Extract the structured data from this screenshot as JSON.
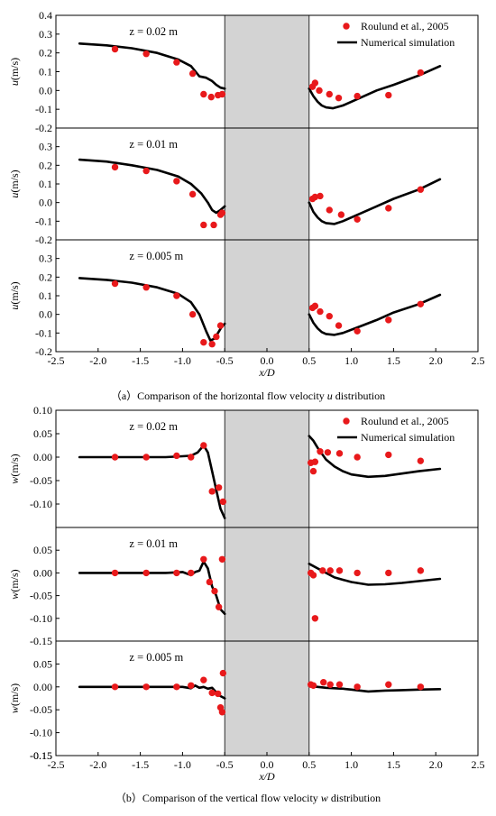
{
  "legend": {
    "experiment": "Roulund et al., 2005",
    "simulation": "Numerical simulation"
  },
  "colors": {
    "marker": "#e8191b",
    "line": "#000000",
    "pier_fill": "#d3d3d3"
  },
  "pier": {
    "x_range": [
      -0.5,
      0.5
    ]
  },
  "x_axis": {
    "label": "x/D",
    "range": [
      -2.5,
      2.5
    ],
    "ticks": [
      "-2.5",
      "-2.0",
      "-1.5",
      "-1.0",
      "-0.5",
      "0.0",
      "0.5",
      "1.0",
      "1.5",
      "2.0",
      "2.5"
    ]
  },
  "figures": [
    {
      "caption": "（a）Comparison of the horizontal flow velocity u distribution",
      "caption_parts": [
        "（a）Comparison of the horizontal flow velocity ",
        "u",
        " distribution"
      ],
      "ylabel_var": "u",
      "ylabel_unit": "(m/s)"
    },
    {
      "caption": "（b）Comparison of the vertical flow velocity w distribution",
      "caption_parts": [
        "（b）Comparison of the vertical flow velocity ",
        "w",
        " distribution"
      ],
      "ylabel_var": "w",
      "ylabel_unit": "(m/s)"
    }
  ],
  "chart_data": [
    {
      "type": "scatter",
      "figure": 0,
      "panel_label": "z = 0.02 m",
      "show_legend": true,
      "ylim": [
        -0.2,
        0.4
      ],
      "yticks": [
        "-0.1",
        "0.0",
        "0.1",
        "0.2",
        "0.3",
        "0.4"
      ],
      "bottom_tick": "-0.2",
      "series": [
        {
          "name": "Roulund et al., 2005",
          "kind": "points",
          "x": [
            -1.8,
            -1.43,
            -1.07,
            -0.88,
            -0.75,
            -0.66,
            -0.58,
            -0.53,
            0.54,
            0.57,
            0.62,
            0.74,
            0.85,
            1.07,
            1.44,
            1.82
          ],
          "y": [
            0.22,
            0.195,
            0.15,
            0.09,
            -0.02,
            -0.035,
            -0.025,
            -0.02,
            0.02,
            0.04,
            0.0,
            -0.02,
            -0.04,
            -0.03,
            -0.025,
            0.095
          ]
        },
        {
          "name": "Numerical simulation",
          "kind": "line",
          "segments": [
            {
              "x": [
                -2.22,
                -1.9,
                -1.6,
                -1.3,
                -1.05,
                -0.9,
                -0.8,
                -0.72,
                -0.65,
                -0.6,
                -0.55,
                -0.5
              ],
              "y": [
                0.25,
                0.24,
                0.225,
                0.2,
                0.165,
                0.13,
                0.075,
                0.068,
                0.05,
                0.03,
                0.015,
                0.01
              ]
            },
            {
              "x": [
                0.5,
                0.55,
                0.6,
                0.65,
                0.7,
                0.78,
                0.9,
                1.1,
                1.3,
                1.5,
                1.8,
                2.05
              ],
              "y": [
                0.01,
                -0.03,
                -0.06,
                -0.08,
                -0.09,
                -0.095,
                -0.08,
                -0.04,
                0.0,
                0.03,
                0.08,
                0.13
              ]
            }
          ]
        }
      ]
    },
    {
      "type": "scatter",
      "figure": 0,
      "panel_label": "z = 0.01 m",
      "show_legend": false,
      "ylim": [
        -0.2,
        0.4
      ],
      "yticks": [
        "-0.1",
        "0.0",
        "0.1",
        "0.2",
        "0.3"
      ],
      "bottom_tick": "-0.2",
      "series": [
        {
          "name": "Roulund et al., 2005",
          "kind": "points",
          "x": [
            -1.8,
            -1.43,
            -1.07,
            -0.88,
            -0.75,
            -0.63,
            -0.55,
            -0.53,
            0.54,
            0.57,
            0.63,
            0.74,
            0.88,
            1.07,
            1.44,
            1.82
          ],
          "y": [
            0.19,
            0.17,
            0.115,
            0.045,
            -0.12,
            -0.12,
            -0.065,
            -0.055,
            0.02,
            0.03,
            0.035,
            -0.04,
            -0.065,
            -0.09,
            -0.03,
            0.07
          ]
        },
        {
          "name": "Numerical simulation",
          "kind": "line",
          "segments": [
            {
              "x": [
                -2.22,
                -1.9,
                -1.6,
                -1.3,
                -1.05,
                -0.9,
                -0.78,
                -0.7,
                -0.65,
                -0.6,
                -0.55,
                -0.5
              ],
              "y": [
                0.23,
                0.22,
                0.2,
                0.175,
                0.14,
                0.1,
                0.05,
                0.0,
                -0.04,
                -0.055,
                -0.04,
                -0.02
              ]
            },
            {
              "x": [
                0.5,
                0.55,
                0.6,
                0.65,
                0.7,
                0.8,
                0.9,
                1.1,
                1.3,
                1.5,
                1.8,
                2.05
              ],
              "y": [
                0.0,
                -0.05,
                -0.08,
                -0.1,
                -0.11,
                -0.115,
                -0.1,
                -0.06,
                -0.02,
                0.02,
                0.07,
                0.125
              ]
            }
          ]
        }
      ]
    },
    {
      "type": "scatter",
      "figure": 0,
      "panel_label": "z = 0.005 m",
      "show_legend": false,
      "ylim": [
        -0.2,
        0.4
      ],
      "yticks": [
        "-0.1",
        "0.0",
        "0.1",
        "0.2",
        "0.3"
      ],
      "bottom_tick": "-0.2",
      "series": [
        {
          "name": "Roulund et al., 2005",
          "kind": "points",
          "x": [
            -1.8,
            -1.43,
            -1.07,
            -0.88,
            -0.75,
            -0.65,
            -0.6,
            -0.55,
            0.54,
            0.57,
            0.63,
            0.74,
            0.85,
            1.07,
            1.44,
            1.82
          ],
          "y": [
            0.165,
            0.145,
            0.1,
            0.0,
            -0.15,
            -0.16,
            -0.12,
            -0.06,
            0.035,
            0.045,
            0.015,
            -0.01,
            -0.06,
            -0.09,
            -0.03,
            0.055
          ]
        },
        {
          "name": "Numerical simulation",
          "kind": "line",
          "segments": [
            {
              "x": [
                -2.22,
                -1.9,
                -1.6,
                -1.3,
                -1.05,
                -0.9,
                -0.8,
                -0.72,
                -0.67,
                -0.62,
                -0.58,
                -0.54,
                -0.5
              ],
              "y": [
                0.195,
                0.185,
                0.17,
                0.145,
                0.11,
                0.065,
                0.0,
                -0.09,
                -0.14,
                -0.13,
                -0.1,
                -0.07,
                -0.05
              ]
            },
            {
              "x": [
                0.5,
                0.55,
                0.6,
                0.65,
                0.7,
                0.8,
                0.9,
                1.1,
                1.3,
                1.5,
                1.8,
                2.05
              ],
              "y": [
                0.0,
                -0.045,
                -0.075,
                -0.095,
                -0.105,
                -0.11,
                -0.1,
                -0.065,
                -0.03,
                0.01,
                0.055,
                0.105
              ]
            }
          ]
        }
      ]
    },
    {
      "type": "scatter",
      "figure": 1,
      "panel_label": "z = 0.02 m",
      "show_legend": true,
      "ylim": [
        -0.15,
        0.1
      ],
      "yticks": [
        "-0.10",
        "-0.05",
        "0.00",
        "0.05",
        "0.10"
      ],
      "bottom_tick": "",
      "series": [
        {
          "name": "Roulund et al., 2005",
          "kind": "points",
          "x": [
            -1.8,
            -1.43,
            -1.07,
            -0.9,
            -0.75,
            -0.65,
            -0.57,
            -0.52,
            0.52,
            0.55,
            0.57,
            0.63,
            0.72,
            0.86,
            1.07,
            1.44,
            1.82
          ],
          "y": [
            0.0,
            0.0,
            0.003,
            0.0,
            0.025,
            -0.073,
            -0.065,
            -0.095,
            -0.012,
            -0.03,
            -0.01,
            0.012,
            0.01,
            0.008,
            0.0,
            0.005,
            -0.008
          ]
        },
        {
          "name": "Numerical simulation",
          "kind": "line",
          "segments": [
            {
              "x": [
                -2.22,
                -1.9,
                -1.5,
                -1.2,
                -1.0,
                -0.9,
                -0.82,
                -0.75,
                -0.7,
                -0.65,
                -0.6,
                -0.55,
                -0.5
              ],
              "y": [
                0.0,
                0.0,
                0.0,
                0.0,
                0.002,
                0.003,
                0.01,
                0.025,
                0.01,
                -0.03,
                -0.07,
                -0.11,
                -0.13
              ]
            },
            {
              "x": [
                0.5,
                0.55,
                0.6,
                0.7,
                0.8,
                0.9,
                1.0,
                1.2,
                1.4,
                1.6,
                1.8,
                2.05
              ],
              "y": [
                0.045,
                0.035,
                0.02,
                -0.005,
                -0.02,
                -0.03,
                -0.037,
                -0.042,
                -0.04,
                -0.035,
                -0.03,
                -0.025
              ]
            }
          ]
        }
      ]
    },
    {
      "type": "scatter",
      "figure": 1,
      "panel_label": "z = 0.01 m",
      "show_legend": false,
      "ylim": [
        -0.15,
        0.1
      ],
      "yticks": [
        "-0.15",
        "-0.10",
        "-0.05",
        "0.00",
        "0.05"
      ],
      "bottom_tick": "",
      "series": [
        {
          "name": "Roulund et al., 2005",
          "kind": "points",
          "x": [
            -1.8,
            -1.43,
            -1.07,
            -0.9,
            -0.75,
            -0.68,
            -0.62,
            -0.57,
            -0.53,
            0.52,
            0.55,
            0.57,
            0.66,
            0.75,
            0.86,
            1.07,
            1.44,
            1.82
          ],
          "y": [
            0.0,
            0.0,
            0.0,
            0.0,
            0.03,
            -0.02,
            -0.04,
            -0.075,
            0.03,
            0.0,
            -0.005,
            -0.1,
            0.005,
            0.005,
            0.005,
            0.0,
            0.0,
            0.005
          ]
        },
        {
          "name": "Numerical simulation",
          "kind": "line",
          "segments": [
            {
              "x": [
                -2.22,
                -1.9,
                -1.5,
                -1.2,
                -1.0,
                -0.9,
                -0.85,
                -0.8,
                -0.75,
                -0.7,
                -0.65,
                -0.6,
                -0.55,
                -0.5
              ],
              "y": [
                0.0,
                0.0,
                0.0,
                0.0,
                0.002,
                -0.005,
                0.002,
                0.005,
                0.025,
                0.01,
                -0.03,
                -0.05,
                -0.08,
                -0.09
              ]
            },
            {
              "x": [
                0.5,
                0.55,
                0.6,
                0.7,
                0.8,
                0.9,
                1.0,
                1.2,
                1.4,
                1.6,
                1.8,
                2.05
              ],
              "y": [
                0.02,
                0.015,
                0.01,
                0.0,
                -0.01,
                -0.015,
                -0.02,
                -0.026,
                -0.025,
                -0.022,
                -0.018,
                -0.013
              ]
            }
          ]
        }
      ]
    },
    {
      "type": "scatter",
      "figure": 1,
      "panel_label": "z = 0.005 m",
      "show_legend": false,
      "ylim": [
        -0.15,
        0.1
      ],
      "yticks": [
        "-0.15",
        "-0.10",
        "-0.05",
        "0.00",
        "0.05"
      ],
      "bottom_tick": "-0.15",
      "series": [
        {
          "name": "Roulund et al., 2005",
          "kind": "points",
          "x": [
            -1.8,
            -1.43,
            -1.07,
            -0.9,
            -0.75,
            -0.65,
            -0.58,
            -0.55,
            -0.53,
            -0.52,
            0.52,
            0.55,
            0.67,
            0.75,
            0.86,
            1.07,
            1.44,
            1.82
          ],
          "y": [
            0.0,
            0.0,
            0.0,
            0.003,
            0.015,
            -0.013,
            -0.015,
            -0.045,
            -0.055,
            0.03,
            0.005,
            0.003,
            0.01,
            0.005,
            0.005,
            0.0,
            0.005,
            0.0
          ]
        },
        {
          "name": "Numerical simulation",
          "kind": "line",
          "segments": [
            {
              "x": [
                -2.22,
                -1.9,
                -1.5,
                -1.2,
                -1.0,
                -0.9,
                -0.85,
                -0.8,
                -0.75,
                -0.7,
                -0.65,
                -0.6,
                -0.55,
                -0.5
              ],
              "y": [
                0.0,
                0.0,
                0.0,
                0.0,
                0.0,
                -0.003,
                0.003,
                -0.002,
                0.0,
                -0.004,
                -0.002,
                -0.012,
                -0.02,
                -0.025
              ]
            },
            {
              "x": [
                0.5,
                0.6,
                0.7,
                0.8,
                0.9,
                1.0,
                1.2,
                1.4,
                1.6,
                1.8,
                2.05
              ],
              "y": [
                0.002,
                0.0,
                -0.002,
                -0.003,
                -0.004,
                -0.006,
                -0.01,
                -0.008,
                -0.007,
                -0.006,
                -0.005
              ]
            }
          ]
        }
      ]
    }
  ]
}
